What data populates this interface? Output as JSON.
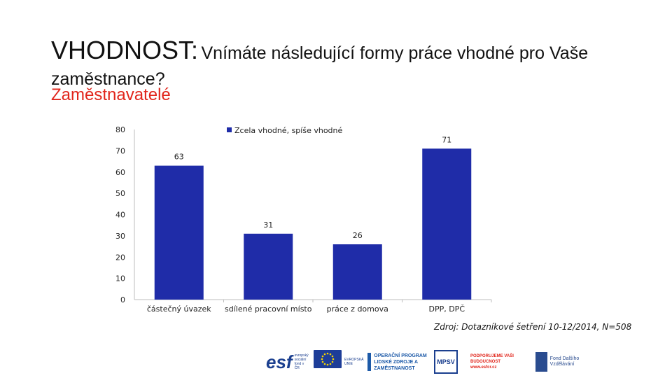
{
  "slide": {
    "title_main": "VHODNOST:",
    "title_rest": "Vnímáte následující formy práce vhodné pro Vaše zaměstnance?",
    "subtitle": "Zaměstnavatelé",
    "source": "Zdroj: Dotazníkové šetření 10-12/2014, N=508"
  },
  "chart_data": {
    "type": "bar",
    "categories": [
      "částečný úvazek",
      "sdílené pracovní místo",
      "práce z domova",
      "DPP, DPČ"
    ],
    "series": [
      {
        "name": "Zcela vhodné, spíše vhodné",
        "values": [
          63,
          31,
          26,
          71
        ],
        "color": "#1f2ca8"
      }
    ],
    "ylim": [
      0,
      80
    ],
    "yticks": [
      0,
      10,
      20,
      30,
      40,
      50,
      60,
      70,
      80
    ],
    "legend_position": "top-center",
    "grid": false
  },
  "logos": {
    "esf": "esf",
    "esf_small": "evropský sociální fond v ČR",
    "eu": "EVROPSKÁ UNIE",
    "op": "OPERAČNÍ PROGRAM LIDSKÉ ZDROJE A ZAMĚSTNANOST",
    "mpsv": "MPSV",
    "pod": "PODPORUJEME VAŠI BUDOUCNOST www.esfcr.cz",
    "fdv": "Fond Dalšího Vzdělávání"
  }
}
